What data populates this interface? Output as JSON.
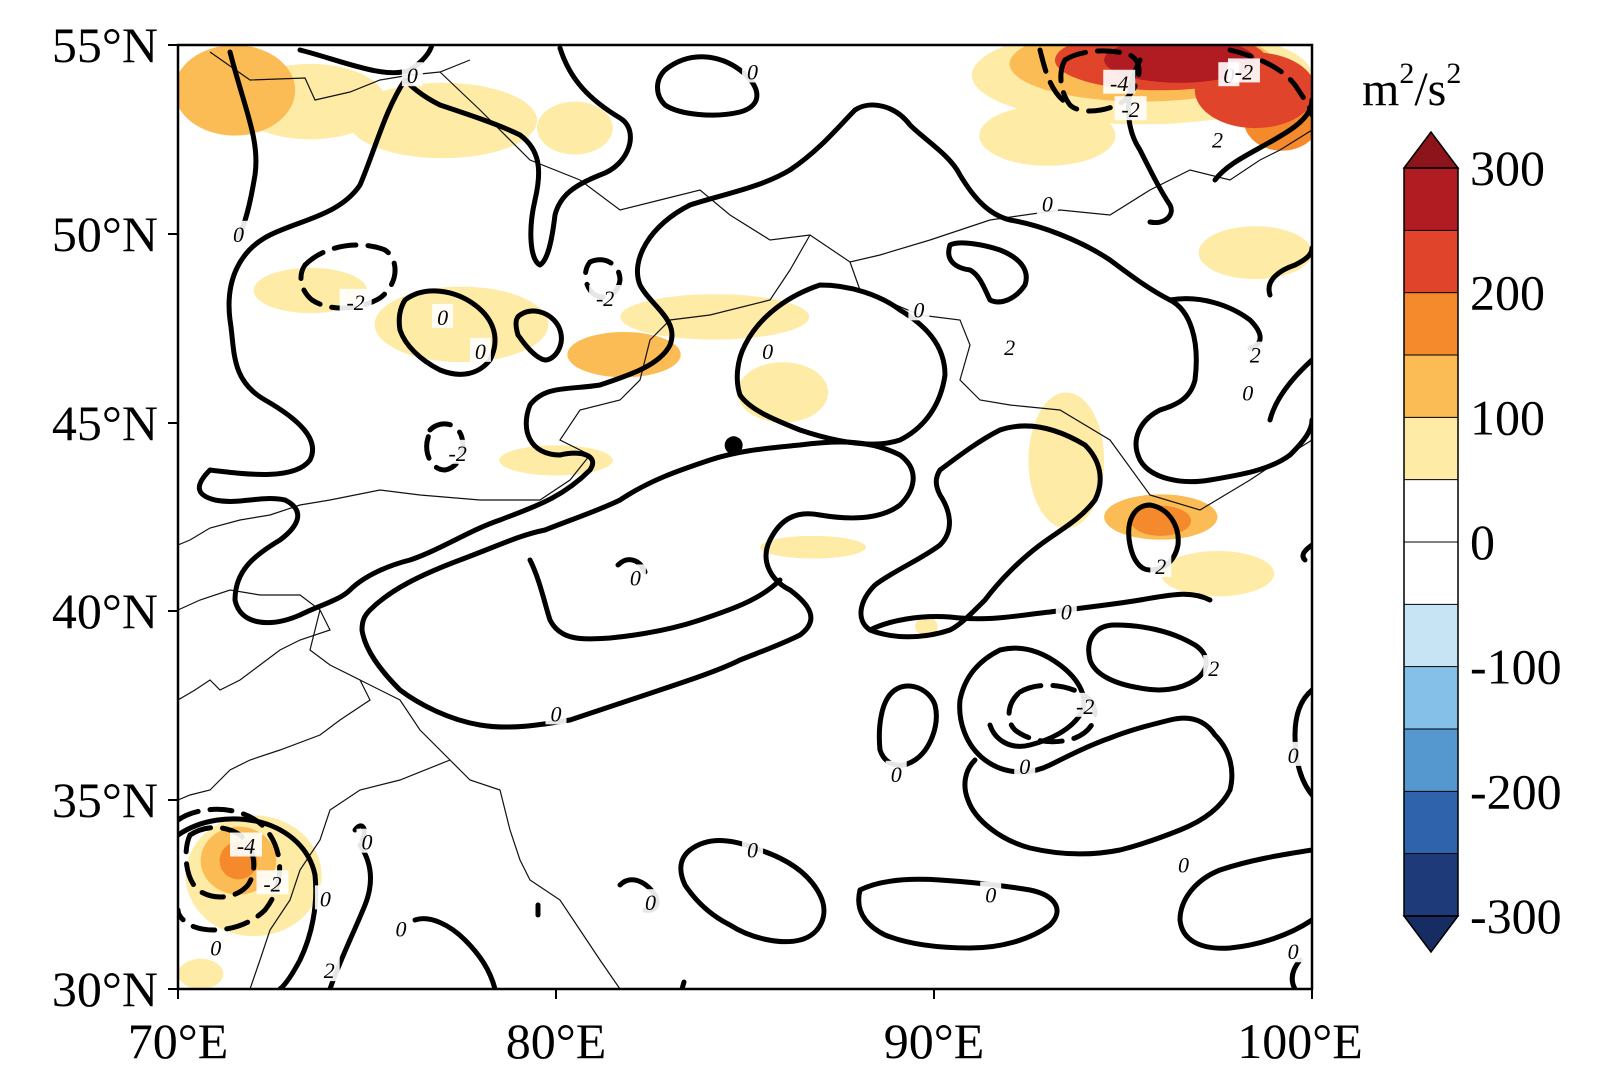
{
  "chart_data": {
    "type": "heatmap",
    "map": {
      "lon_range": [
        70,
        100
      ],
      "lat_range": [
        30,
        55
      ],
      "x_ticks": [
        "70°E",
        "80°E",
        "90°E",
        "100°E"
      ],
      "y_ticks": [
        "55°N",
        "50°N",
        "45°N",
        "40°N",
        "35°N",
        "30°N"
      ],
      "marker_point": {
        "lon": 84.7,
        "lat": 44.4
      },
      "contour_levels": [
        -4,
        -2,
        0
      ],
      "contour_labels": [
        {
          "lon": 76.2,
          "lat": 54.2,
          "text": "0"
        },
        {
          "lon": 85.2,
          "lat": 54.3,
          "text": "0"
        },
        {
          "lon": 94.9,
          "lat": 54.0,
          "text": "-4"
        },
        {
          "lon": 95.2,
          "lat": 53.3,
          "text": "-2"
        },
        {
          "lon": 97.8,
          "lat": 54.2,
          "text": "0"
        },
        {
          "lon": 98.2,
          "lat": 54.3,
          "text": "-2"
        },
        {
          "lon": 97.5,
          "lat": 52.5,
          "text": "2"
        },
        {
          "lon": 93.0,
          "lat": 50.8,
          "text": "0"
        },
        {
          "lon": 71.6,
          "lat": 50.0,
          "text": "0"
        },
        {
          "lon": 74.7,
          "lat": 48.2,
          "text": "-2"
        },
        {
          "lon": 77.0,
          "lat": 47.8,
          "text": "0"
        },
        {
          "lon": 78.0,
          "lat": 46.9,
          "text": "0"
        },
        {
          "lon": 81.3,
          "lat": 48.3,
          "text": "-2"
        },
        {
          "lon": 85.6,
          "lat": 46.9,
          "text": "0"
        },
        {
          "lon": 92.0,
          "lat": 47.0,
          "text": "2"
        },
        {
          "lon": 98.5,
          "lat": 46.8,
          "text": "2"
        },
        {
          "lon": 89.6,
          "lat": 48.0,
          "text": "0"
        },
        {
          "lon": 98.3,
          "lat": 45.8,
          "text": "0"
        },
        {
          "lon": 77.4,
          "lat": 44.2,
          "text": "-2"
        },
        {
          "lon": 82.1,
          "lat": 40.9,
          "text": "0"
        },
        {
          "lon": 96.0,
          "lat": 41.2,
          "text": "2"
        },
        {
          "lon": 93.5,
          "lat": 40.0,
          "text": "0"
        },
        {
          "lon": 97.4,
          "lat": 38.5,
          "text": "2"
        },
        {
          "lon": 80.0,
          "lat": 37.3,
          "text": "0"
        },
        {
          "lon": 94.0,
          "lat": 37.5,
          "text": "-2"
        },
        {
          "lon": 89.0,
          "lat": 35.7,
          "text": "0"
        },
        {
          "lon": 92.4,
          "lat": 35.9,
          "text": "0"
        },
        {
          "lon": 99.5,
          "lat": 36.2,
          "text": "0"
        },
        {
          "lon": 71.8,
          "lat": 33.8,
          "text": "-4"
        },
        {
          "lon": 72.5,
          "lat": 32.8,
          "text": "-2"
        },
        {
          "lon": 73.9,
          "lat": 32.4,
          "text": "0"
        },
        {
          "lon": 75.0,
          "lat": 33.9,
          "text": "0"
        },
        {
          "lon": 71.0,
          "lat": 31.1,
          "text": "0"
        },
        {
          "lon": 74.0,
          "lat": 30.5,
          "text": "2"
        },
        {
          "lon": 75.9,
          "lat": 31.6,
          "text": "0"
        },
        {
          "lon": 82.5,
          "lat": 32.3,
          "text": "0"
        },
        {
          "lon": 85.2,
          "lat": 33.7,
          "text": "0"
        },
        {
          "lon": 91.5,
          "lat": 32.5,
          "text": "0"
        },
        {
          "lon": 96.6,
          "lat": 33.3,
          "text": "0"
        },
        {
          "lon": 99.5,
          "lat": 31.0,
          "text": "0"
        }
      ]
    },
    "colorbar": {
      "unit": "m²/s²",
      "unit_base": "m",
      "unit_sup": "2",
      "unit_mid": "/s",
      "range": [
        -300,
        300
      ],
      "ticks": [
        "300",
        "200",
        "100",
        "0",
        "-100",
        "-200",
        "-300"
      ],
      "tick_values": [
        300,
        200,
        100,
        0,
        -100,
        -200,
        -300
      ],
      "levels": [
        -300,
        -250,
        -200,
        -150,
        -100,
        -50,
        0,
        50,
        100,
        150,
        200,
        250,
        300
      ],
      "colors": [
        "#1e3a78",
        "#2f64ad",
        "#5597cf",
        "#85c0e8",
        "#c6e4f4",
        "#ffffff",
        "#ffffff",
        "#fdeba6",
        "#fcbc55",
        "#f48a2c",
        "#e0442a",
        "#b11c22"
      ],
      "extend_max_color": "#8e141b",
      "extend_min_color": "#172c63"
    },
    "shading_regions": [
      {
        "lon": 71.5,
        "lat": 53.8,
        "r_lon": 1.6,
        "r_lat": 1.2,
        "value": 110
      },
      {
        "lon": 73.5,
        "lat": 53.5,
        "r_lon": 2.0,
        "r_lat": 1.0,
        "value": 90
      },
      {
        "lon": 77.0,
        "lat": 53.0,
        "r_lon": 2.5,
        "r_lat": 1.0,
        "value": 70
      },
      {
        "lon": 80.5,
        "lat": 52.8,
        "r_lon": 1.0,
        "r_lat": 0.7,
        "value": 60
      },
      {
        "lon": 77.5,
        "lat": 47.6,
        "r_lon": 2.3,
        "r_lat": 1.0,
        "value": 80
      },
      {
        "lon": 81.8,
        "lat": 46.8,
        "r_lon": 1.5,
        "r_lat": 0.6,
        "value": 110
      },
      {
        "lon": 84.2,
        "lat": 47.8,
        "r_lon": 2.5,
        "r_lat": 0.6,
        "value": 80
      },
      {
        "lon": 86.0,
        "lat": 45.8,
        "r_lon": 1.2,
        "r_lat": 0.8,
        "value": 70
      },
      {
        "lon": 73.5,
        "lat": 48.5,
        "r_lon": 1.5,
        "r_lat": 0.6,
        "value": 70
      },
      {
        "lon": 93.5,
        "lat": 44.0,
        "r_lon": 1.0,
        "r_lat": 1.8,
        "value": 70
      },
      {
        "lon": 96.0,
        "lat": 42.5,
        "r_lon": 1.5,
        "r_lat": 0.6,
        "value": 110
      },
      {
        "lon": 96.0,
        "lat": 42.4,
        "r_lon": 0.8,
        "r_lat": 0.4,
        "value": 170
      },
      {
        "lon": 97.5,
        "lat": 41.0,
        "r_lon": 1.5,
        "r_lat": 0.6,
        "value": 70
      },
      {
        "lon": 86.8,
        "lat": 41.7,
        "r_lon": 1.4,
        "r_lat": 0.3,
        "value": 60
      },
      {
        "lon": 98.5,
        "lat": 49.5,
        "r_lon": 1.5,
        "r_lat": 0.7,
        "value": 90
      },
      {
        "lon": 93.0,
        "lat": 52.6,
        "r_lon": 1.8,
        "r_lat": 0.8,
        "value": 60
      },
      {
        "lon": 95.5,
        "lat": 54.2,
        "r_lon": 4.5,
        "r_lat": 1.3,
        "value": 90
      },
      {
        "lon": 95.5,
        "lat": 54.5,
        "r_lon": 3.5,
        "r_lat": 1.0,
        "value": 140
      },
      {
        "lon": 96.0,
        "lat": 54.6,
        "r_lon": 2.8,
        "r_lat": 0.8,
        "value": 200
      },
      {
        "lon": 96.5,
        "lat": 54.6,
        "r_lon": 2.0,
        "r_lat": 0.6,
        "value": 260
      },
      {
        "lon": 98.5,
        "lat": 53.8,
        "r_lon": 1.6,
        "r_lat": 1.0,
        "value": 220
      },
      {
        "lon": 99.2,
        "lat": 53.0,
        "r_lon": 1.0,
        "r_lat": 0.8,
        "value": 180
      },
      {
        "lon": 72.0,
        "lat": 33.0,
        "r_lon": 1.8,
        "r_lat": 1.6,
        "value": 90
      },
      {
        "lon": 71.6,
        "lat": 33.4,
        "r_lon": 1.0,
        "r_lat": 0.9,
        "value": 140
      },
      {
        "lon": 71.6,
        "lat": 33.4,
        "r_lon": 0.5,
        "r_lat": 0.5,
        "value": 190
      },
      {
        "lon": 70.6,
        "lat": 30.4,
        "r_lon": 0.6,
        "r_lat": 0.4,
        "value": 80
      },
      {
        "lon": 80.0,
        "lat": 44.0,
        "r_lon": 1.5,
        "r_lat": 0.4,
        "value": 60
      },
      {
        "lon": 89.8,
        "lat": 39.6,
        "r_lon": 0.3,
        "r_lat": 0.25,
        "value": 70
      }
    ]
  }
}
